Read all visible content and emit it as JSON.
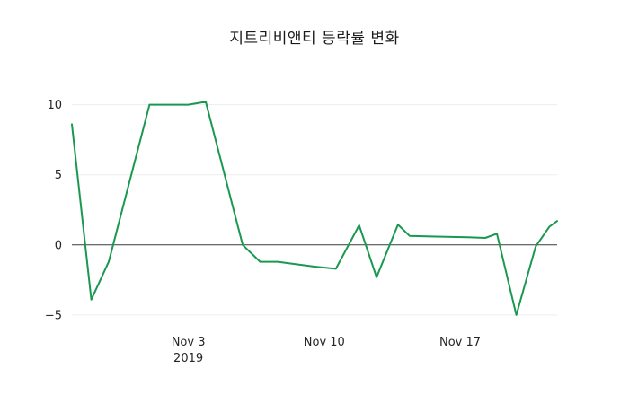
{
  "chart_data": {
    "type": "line",
    "title": "지트리비앤티 등락률 변화",
    "xlabel": "",
    "ylabel": "",
    "background": "#ffffff",
    "grid": "horizontal-faint",
    "zero_line": true,
    "legend": "none",
    "xlim": [
      0,
      25
    ],
    "ylim": [
      -5.9,
      11.7
    ],
    "series": [
      {
        "name": "등락률",
        "color": "#1a9850",
        "x": [
          0,
          1,
          1.9,
          4,
          5,
          6,
          6.9,
          8.8,
          9.7,
          10.6,
          12.5,
          13.6,
          14.8,
          15.7,
          16.8,
          17.4,
          18.5,
          20.4,
          21.3,
          21.9,
          22.9,
          23.9,
          24.6,
          25
        ],
        "y": [
          8.6,
          -3.9,
          -1.2,
          10.0,
          10.0,
          10.0,
          10.2,
          0.0,
          -1.2,
          -1.2,
          -1.55,
          -1.7,
          1.4,
          -2.3,
          1.45,
          0.65,
          0.6,
          0.55,
          0.5,
          0.8,
          -5.0,
          -0.1,
          1.3,
          1.7
        ]
      }
    ],
    "x_ticks": [
      {
        "pos": 6,
        "label": "Nov 3",
        "sublabel": "2019"
      },
      {
        "pos": 13,
        "label": "Nov 10",
        "sublabel": ""
      },
      {
        "pos": 20,
        "label": "Nov 17",
        "sublabel": ""
      }
    ],
    "y_ticks": [
      {
        "value": 10,
        "label": "10"
      },
      {
        "value": 5,
        "label": "5"
      },
      {
        "value": 0,
        "label": "0"
      },
      {
        "value": -5,
        "label": "−5"
      }
    ]
  }
}
